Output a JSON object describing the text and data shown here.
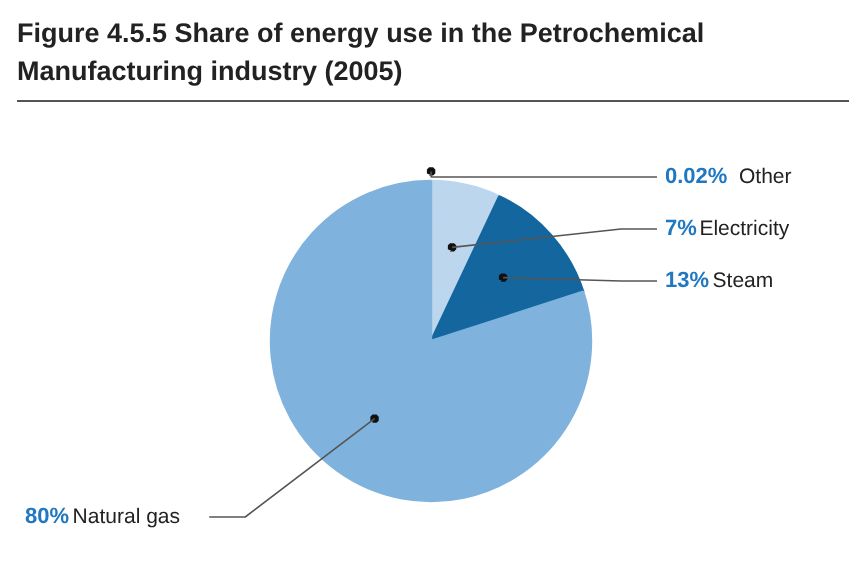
{
  "chart_data": {
    "type": "pie",
    "title": "Figure 4.5.5 Share of energy use in the Petrochemical Manufacturing industry (2005)",
    "categories": [
      "Other",
      "Electricity",
      "Steam",
      "Natural gas"
    ],
    "values": [
      0.02,
      7,
      13,
      80
    ],
    "colors": [
      "#8c8c8c",
      "#bcd6ee",
      "#13669e",
      "#7fb3de"
    ],
    "value_labels": [
      "0.02%",
      "7%",
      "13%",
      "80%"
    ]
  }
}
